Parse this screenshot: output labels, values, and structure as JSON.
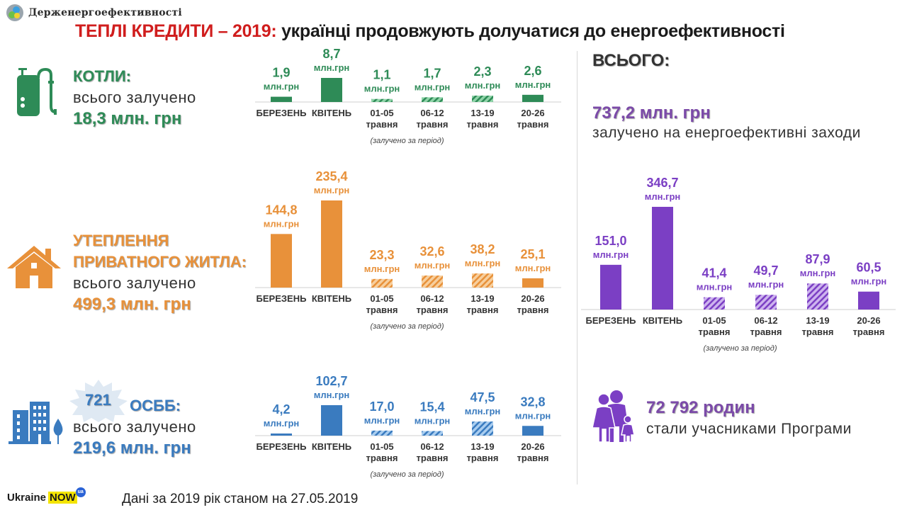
{
  "header": {
    "org_name": "Держенергоефективності",
    "title_highlight": "ТЕПЛІ КРЕДИТИ – 2019:",
    "title_rest": " українці продовжують долучатися до енергоефективності"
  },
  "colors": {
    "title_red": "#d01d1d",
    "boilers": "#2e8b57",
    "housing": "#e8913a",
    "osbb": "#3a7bbf",
    "total": "#7b3fc4"
  },
  "categories": [
    {
      "id": "boilers",
      "icon": "boiler-icon",
      "heading_lines": [
        "КОТЛИ:"
      ],
      "sub": "всього залучено",
      "total": "18,3 млн. грн"
    },
    {
      "id": "housing",
      "icon": "house-icon",
      "heading_lines": [
        "УТЕПЛЕННЯ",
        "ПРИВАТНОГО ЖИТЛА:"
      ],
      "sub": "всього залучено",
      "total": "499,3 млн. грн"
    },
    {
      "id": "osbb",
      "icon": "apartment-building-icon",
      "badge": "721",
      "heading_lines": [
        "ОСББ:"
      ],
      "sub": "всього залучено",
      "total": "219,6 млн. грн"
    }
  ],
  "summary": {
    "heading": "ВСЬОГО:",
    "amount": "737,2 млн. грн",
    "description": "залучено на енергоефективні заходи",
    "families_count": "72 792 родин",
    "families_desc": "стали учасниками Програми"
  },
  "footer": {
    "brand_left": "Ukraine",
    "brand_right": "NOW",
    "brand_badge": "ua",
    "note": "Дані за 2019 рік станом на 27.05.2019"
  },
  "chart_data": [
    {
      "type": "bar",
      "title": "Котли",
      "unit": "млн.грн",
      "categories": [
        [
          "БЕРЕЗЕНЬ"
        ],
        [
          "КВІТЕНЬ"
        ],
        [
          "01-05",
          "травня"
        ],
        [
          "06-12",
          "травня"
        ],
        [
          "13-19",
          "травня"
        ],
        [
          "20-26",
          "травня"
        ]
      ],
      "values": [
        1.9,
        8.7,
        1.1,
        1.7,
        2.3,
        2.6
      ],
      "labels": [
        "1,9",
        "8,7",
        "1,1",
        "1,7",
        "2,3",
        "2,6"
      ],
      "hatched": [
        false,
        false,
        true,
        true,
        true,
        false
      ],
      "note": "(залучено  за період)",
      "color": "#2e8b57",
      "hatch_color": "#8fd4a8"
    },
    {
      "type": "bar",
      "title": "Утеплення приватного житла",
      "unit": "млн.грн",
      "categories": [
        [
          "БЕРЕЗЕНЬ"
        ],
        [
          "КВІТЕНЬ"
        ],
        [
          "01-05",
          "травня"
        ],
        [
          "06-12",
          "травня"
        ],
        [
          "13-19",
          "травня"
        ],
        [
          "20-26",
          "травня"
        ]
      ],
      "values": [
        144.8,
        235.4,
        23.3,
        32.6,
        38.2,
        25.1
      ],
      "labels": [
        "144,8",
        "235,4",
        "23,3",
        "32,6",
        "38,2",
        "25,1"
      ],
      "hatched": [
        false,
        false,
        true,
        true,
        true,
        false
      ],
      "note": "(залучено  за період)",
      "color": "#e8913a",
      "hatch_color": "#f7cf9e"
    },
    {
      "type": "bar",
      "title": "ОСББ",
      "unit": "млн.грн",
      "categories": [
        [
          "БЕРЕЗЕНЬ"
        ],
        [
          "КВІТЕНЬ"
        ],
        [
          "01-05",
          "травня"
        ],
        [
          "06-12",
          "травня"
        ],
        [
          "13-19",
          "травня"
        ],
        [
          "20-26",
          "травня"
        ]
      ],
      "values": [
        4.2,
        102.7,
        17.0,
        15.4,
        47.5,
        32.8
      ],
      "labels": [
        "4,2",
        "102,7",
        "17,0",
        "15,4",
        "47,5",
        "32,8"
      ],
      "hatched": [
        false,
        false,
        true,
        true,
        true,
        false
      ],
      "note": "(залучено  за період)",
      "color": "#3a7bbf",
      "hatch_color": "#a9cdef"
    },
    {
      "type": "bar",
      "title": "Всього",
      "unit": "млн.грн",
      "categories": [
        [
          "БЕРЕЗЕНЬ"
        ],
        [
          "КВІТЕНЬ"
        ],
        [
          "01-05",
          "травня"
        ],
        [
          "06-12",
          "травня"
        ],
        [
          "13-19",
          "травня"
        ],
        [
          "20-26",
          "травня"
        ]
      ],
      "values": [
        151.0,
        346.7,
        41.4,
        49.7,
        87.9,
        60.5
      ],
      "labels": [
        "151,0",
        "346,7",
        "41,4",
        "49,7",
        "87,9",
        "60,5"
      ],
      "hatched": [
        false,
        false,
        true,
        true,
        true,
        false
      ],
      "note": "(залучено  за період)",
      "color": "#7b3fc4",
      "hatch_color": "#cdb3ee"
    }
  ]
}
